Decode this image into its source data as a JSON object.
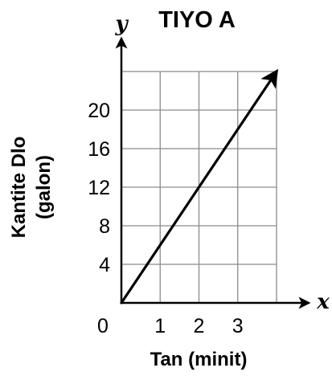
{
  "chart_data": {
    "type": "line",
    "title": "TIYO A",
    "xlabel": "Tan (minit)",
    "ylabel_lines": [
      "Kantite Dlo",
      "(galon)"
    ],
    "x_axis_symbol": "x",
    "y_axis_symbol": "y",
    "origin_label": "0",
    "x_ticks": [
      1,
      2,
      3
    ],
    "y_ticks": [
      4,
      8,
      12,
      16,
      20
    ],
    "xlim": [
      0,
      4
    ],
    "ylim": [
      0,
      24
    ],
    "grid": true,
    "series": [
      {
        "x": [
          0,
          4
        ],
        "y": [
          0,
          24
        ],
        "arrow_end": true
      }
    ]
  }
}
